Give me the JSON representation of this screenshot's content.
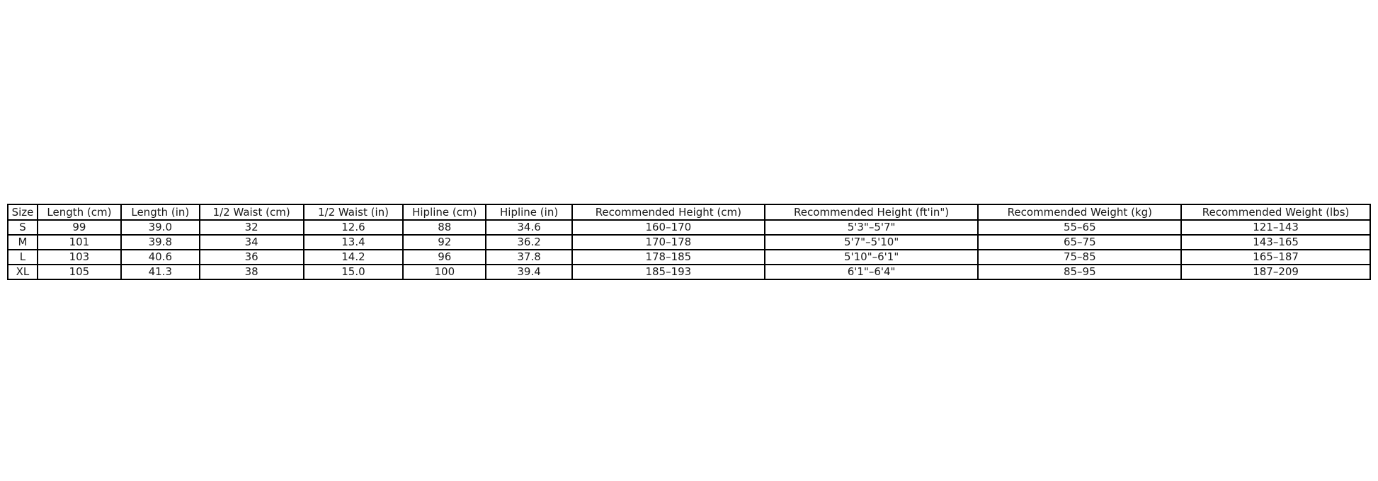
{
  "chart_data": {
    "type": "table",
    "columns": [
      "Size",
      "Length (cm)",
      "Length (in)",
      "1/2 Waist (cm)",
      "1/2 Waist (in)",
      "Hipline (cm)",
      "Hipline (in)",
      "Recommended Height (cm)",
      "Recommended Height (ft'in\")",
      "Recommended Weight (kg)",
      "Recommended Weight (lbs)"
    ],
    "rows": [
      [
        "S",
        "99",
        "39.0",
        "32",
        "12.6",
        "88",
        "34.6",
        "160–170",
        "5'3\"–5'7\"",
        "55–65",
        "121–143"
      ],
      [
        "M",
        "101",
        "39.8",
        "34",
        "13.4",
        "92",
        "36.2",
        "170–178",
        "5'7\"–5'10\"",
        "65–75",
        "143–165"
      ],
      [
        "L",
        "103",
        "40.6",
        "36",
        "14.2",
        "96",
        "37.8",
        "178–185",
        "5'10\"–6'1\"",
        "75–85",
        "165–187"
      ],
      [
        "XL",
        "105",
        "41.3",
        "38",
        "15.0",
        "100",
        "39.4",
        "185–193",
        "6'1\"–6'4\"",
        "85–95",
        "187–209"
      ]
    ]
  },
  "colors": {
    "table_border": "#000000",
    "text": "#1a1a1a",
    "background": "#ffffff"
  }
}
